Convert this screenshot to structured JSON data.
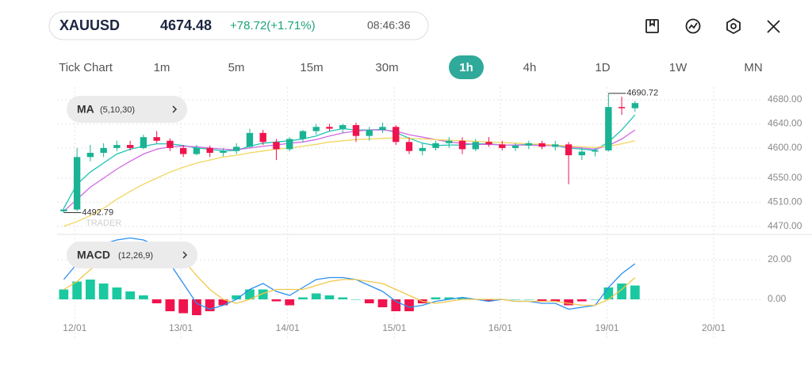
{
  "header": {
    "symbol": "XAUUSD",
    "price": "4674.48",
    "change": "+78.72(+1.71%)",
    "time": "08:46:36"
  },
  "timeframes": [
    "Tick Chart",
    "1m",
    "5m",
    "15m",
    "30m",
    "1h",
    "4h",
    "1D",
    "1W",
    "MN"
  ],
  "watermark": "TRADER",
  "chart_data": [
    {
      "type": "candlestick",
      "legend": {
        "name": "MA",
        "params": "(5,10,30)"
      },
      "up_color": "#1ab394",
      "down_color": "#f0134d",
      "open": [
        4495,
        4498,
        4585,
        4592,
        4600,
        4605,
        4600,
        4618,
        4612,
        4600,
        4590,
        4600,
        4592,
        4595,
        4602,
        4625,
        4610,
        4598,
        4615,
        4628,
        4635,
        4632,
        4638,
        4620,
        4630,
        4635,
        4610,
        4595,
        4600,
        4608,
        4612,
        4598,
        4610,
        4606,
        4600,
        4604,
        4608,
        4602,
        4606,
        4588,
        4594,
        4596,
        4668,
        4666
      ],
      "high": [
        4500,
        4600,
        4605,
        4608,
        4612,
        4612,
        4622,
        4628,
        4616,
        4605,
        4605,
        4604,
        4600,
        4608,
        4632,
        4630,
        4615,
        4618,
        4630,
        4640,
        4640,
        4640,
        4642,
        4635,
        4642,
        4638,
        4618,
        4608,
        4612,
        4618,
        4618,
        4615,
        4618,
        4612,
        4608,
        4612,
        4612,
        4612,
        4610,
        4600,
        4600,
        4690.72,
        4685,
        4678
      ],
      "low": [
        4492.79,
        4495,
        4578,
        4585,
        4595,
        4596,
        4598,
        4608,
        4595,
        4585,
        4588,
        4585,
        4586,
        4590,
        4600,
        4605,
        4580,
        4595,
        4610,
        4622,
        4628,
        4625,
        4610,
        4612,
        4625,
        4605,
        4590,
        4588,
        4596,
        4600,
        4590,
        4595,
        4602,
        4596,
        4595,
        4598,
        4598,
        4596,
        4540,
        4580,
        4586,
        4594,
        4655,
        4660
      ],
      "close": [
        4498,
        4585,
        4592,
        4600,
        4605,
        4600,
        4618,
        4612,
        4600,
        4590,
        4600,
        4592,
        4595,
        4602,
        4625,
        4610,
        4598,
        4615,
        4628,
        4635,
        4632,
        4638,
        4620,
        4630,
        4635,
        4610,
        4595,
        4600,
        4608,
        4612,
        4598,
        4610,
        4606,
        4600,
        4604,
        4608,
        4602,
        4606,
        4588,
        4594,
        4596,
        4668,
        4666,
        4674.48
      ],
      "series": [
        {
          "color": "#1fc4b4",
          "values": [
            4500,
            4540,
            4560,
            4575,
            4590,
            4598,
            4603,
            4607,
            4607,
            4604,
            4600,
            4598,
            4595,
            4596,
            4603,
            4608,
            4610,
            4612,
            4615,
            4620,
            4628,
            4632,
            4630,
            4630,
            4631,
            4626,
            4616,
            4608,
            4604,
            4605,
            4605,
            4607,
            4607,
            4605,
            4605,
            4606,
            4604,
            4604,
            4600,
            4598,
            4596,
            4610,
            4630,
            4655
          ]
        },
        {
          "color": "#d06ae6",
          "values": [
            4495,
            4515,
            4535,
            4550,
            4565,
            4578,
            4590,
            4598,
            4602,
            4603,
            4602,
            4600,
            4598,
            4597,
            4600,
            4603,
            4605,
            4608,
            4610,
            4614,
            4620,
            4625,
            4628,
            4630,
            4630,
            4628,
            4622,
            4618,
            4614,
            4610,
            4608,
            4606,
            4606,
            4605,
            4605,
            4605,
            4604,
            4604,
            4602,
            4600,
            4598,
            4604,
            4615,
            4630
          ]
        },
        {
          "color": "#f2d65e",
          "values": [
            4470,
            4478,
            4488,
            4500,
            4515,
            4528,
            4540,
            4550,
            4560,
            4568,
            4575,
            4580,
            4585,
            4588,
            4592,
            4595,
            4598,
            4600,
            4603,
            4606,
            4610,
            4612,
            4614,
            4615,
            4616,
            4617,
            4616,
            4615,
            4614,
            4613,
            4612,
            4611,
            4610,
            4609,
            4608,
            4607,
            4606,
            4605,
            4603,
            4602,
            4601,
            4603,
            4607,
            4612
          ]
        }
      ],
      "annotations": [
        {
          "label": "4690.72",
          "value": 4690.72
        },
        {
          "label": "4492.79",
          "value": 4492.79
        }
      ],
      "xlim": [
        -0.5,
        52.5
      ],
      "ylim": [
        4458,
        4701
      ],
      "yticks": [
        {
          "value": 4680,
          "label": "4680.00"
        },
        {
          "value": 4640,
          "label": "4640.00"
        },
        {
          "value": 4600,
          "label": "4600.00"
        },
        {
          "value": 4550,
          "label": "4550.00"
        },
        {
          "value": 4510,
          "label": "4510.00"
        },
        {
          "value": 4470,
          "label": "4470.00"
        }
      ],
      "grid": true
    },
    {
      "type": "macd",
      "legend": {
        "name": "MACD",
        "params": "(12,26,9)"
      },
      "up_color": "#1ac9a0",
      "down_color": "#f0134d",
      "histogram": [
        5,
        9,
        10,
        8,
        6,
        4,
        2,
        -2,
        -6,
        -7,
        -8,
        -6,
        -3,
        2,
        5,
        5,
        -1,
        -3,
        1,
        3,
        2,
        1,
        0,
        -2,
        -4,
        -6,
        -6,
        -2,
        1,
        1,
        1,
        0,
        -1,
        0,
        0,
        0,
        -1,
        -1,
        -3,
        -1,
        0,
        6,
        8,
        7
      ],
      "series": [
        {
          "color": "#2b8ff0",
          "values": [
            10,
            18,
            25,
            28,
            30,
            31,
            30,
            27,
            18,
            8,
            -2,
            -5,
            -3,
            0,
            5,
            8,
            4,
            2,
            6,
            10,
            11,
            11,
            10,
            7,
            4,
            -1,
            -4,
            -3,
            -1,
            0,
            1,
            0,
            -1,
            0,
            -1,
            -1,
            -2,
            -2,
            -5,
            -4,
            -3,
            6,
            13,
            18
          ]
        },
        {
          "color": "#f0c84a",
          "values": [
            5,
            9,
            15,
            20,
            24,
            27,
            28,
            29,
            26,
            20,
            12,
            5,
            0,
            -2,
            0,
            3,
            5,
            5,
            5,
            7,
            9,
            10,
            10,
            9,
            8,
            5,
            2,
            -1,
            -2,
            -1,
            0,
            0,
            0,
            0,
            -1,
            -1,
            -1,
            -1,
            -2,
            -3,
            -3,
            0,
            5,
            11
          ]
        }
      ],
      "xlim": [
        -0.5,
        52.5
      ],
      "ylim": [
        -8.8,
        31.2
      ],
      "yticks": [
        {
          "value": 20,
          "label": "20.00"
        },
        {
          "value": 0,
          "label": "0.00"
        }
      ],
      "xticks": [
        {
          "value": 0.83,
          "label": "12/01"
        },
        {
          "value": 8.81,
          "label": "13/01"
        },
        {
          "value": 16.85,
          "label": "14/01"
        },
        {
          "value": 24.88,
          "label": "15/01"
        },
        {
          "value": 32.86,
          "label": "16/01"
        },
        {
          "value": 40.89,
          "label": "19/01"
        },
        {
          "value": 48.92,
          "label": "20/01"
        }
      ],
      "grid": true
    }
  ]
}
